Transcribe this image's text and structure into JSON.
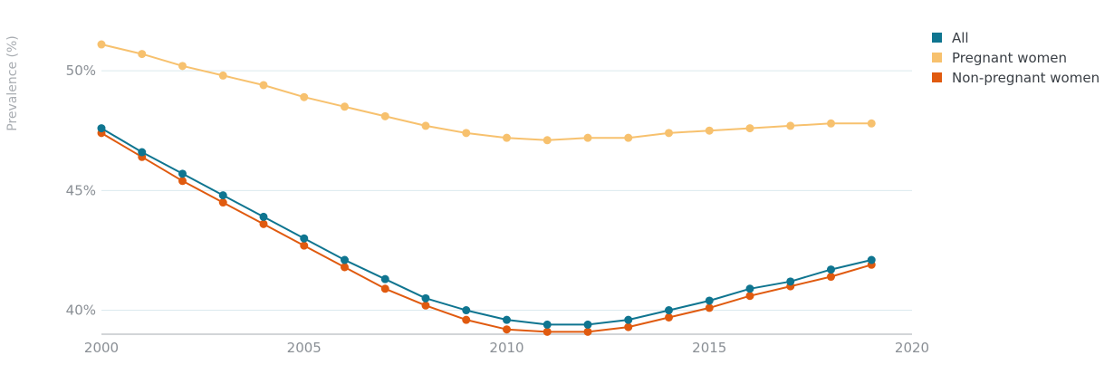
{
  "chart_data": {
    "type": "line",
    "title": "",
    "xlabel": "",
    "ylabel": "Prevalence (%)",
    "x": [
      2000,
      2001,
      2002,
      2003,
      2004,
      2005,
      2006,
      2007,
      2008,
      2009,
      2010,
      2011,
      2012,
      2013,
      2014,
      2015,
      2016,
      2017,
      2018,
      2019
    ],
    "xlim": [
      2000,
      2020
    ],
    "ylim": [
      39,
      52.5
    ],
    "x_ticks": [
      "2000",
      "2005",
      "2010",
      "2015",
      "2020"
    ],
    "y_ticks": [
      "40%",
      "45%",
      "50%"
    ],
    "grid": "horizontal",
    "legend_position": "top-right",
    "series": [
      {
        "name": "All",
        "color": "#0f7590",
        "values": [
          47.6,
          46.6,
          45.7,
          44.8,
          43.9,
          43.0,
          42.1,
          41.3,
          40.5,
          40.0,
          39.6,
          39.4,
          39.4,
          39.6,
          40.0,
          40.4,
          40.9,
          41.2,
          41.7,
          42.1
        ]
      },
      {
        "name": "Pregnant women",
        "color": "#f7c16e",
        "values": [
          51.1,
          50.7,
          50.2,
          49.8,
          49.4,
          48.9,
          48.5,
          48.1,
          47.7,
          47.4,
          47.2,
          47.1,
          47.2,
          47.2,
          47.4,
          47.5,
          47.6,
          47.7,
          47.8,
          47.8
        ]
      },
      {
        "name": "Non-pregnant women",
        "color": "#e05a0f",
        "values": [
          47.4,
          46.4,
          45.4,
          44.5,
          43.6,
          42.7,
          41.8,
          40.9,
          40.2,
          39.6,
          39.2,
          39.1,
          39.1,
          39.3,
          39.7,
          40.1,
          40.6,
          41.0,
          41.4,
          41.9
        ]
      }
    ]
  }
}
